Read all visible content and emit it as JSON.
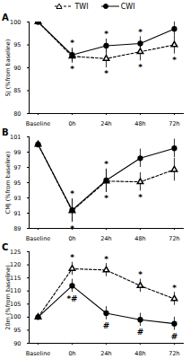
{
  "chart_data": [
    {
      "type": "line",
      "panel": "A",
      "y_label": "SJ (%from baseline)",
      "categories": [
        "Baseline",
        "0h",
        "24h",
        "48h",
        "72h"
      ],
      "ylim": [
        80,
        100
      ],
      "yticks": [
        80,
        85,
        90,
        95,
        100
      ],
      "grid": false,
      "legend": "top",
      "series": [
        {
          "name": "TWI",
          "color": "#000000",
          "marker": "triangle-open",
          "line_style": "dashed",
          "values": [
            100,
            92.5,
            92,
            93.5,
            95
          ],
          "errors": [
            0,
            1.5,
            2,
            2,
            2
          ],
          "annotations": [
            null,
            "*",
            "*",
            "*",
            "*"
          ]
        },
        {
          "name": "CWI",
          "color": "#000000",
          "marker": "circle",
          "line_style": "solid",
          "values": [
            100,
            92.8,
            94.8,
            95.3,
            98.5
          ],
          "errors": [
            0,
            1.5,
            1.5,
            1.5,
            1.5
          ],
          "annotations": [
            null,
            "*",
            "*",
            "*",
            null
          ]
        }
      ]
    },
    {
      "type": "line",
      "panel": "B",
      "y_label": "CMJ (%from baseline)",
      "categories": [
        "Baseline",
        "0h",
        "24h",
        "48h",
        "72h"
      ],
      "ylim": [
        89,
        101
      ],
      "yticks": [
        89,
        91,
        93,
        95,
        97,
        99,
        101
      ],
      "grid": false,
      "series": [
        {
          "name": "TWI",
          "color": "#000000",
          "marker": "triangle-open",
          "line_style": "dashed",
          "values": [
            100,
            91.3,
            95.2,
            95.1,
            96.7
          ],
          "errors": [
            0,
            1.5,
            1.5,
            1.2,
            1.5
          ],
          "annotations": [
            null,
            "*",
            "*",
            "*",
            null
          ]
        },
        {
          "name": "CWI",
          "color": "#000000",
          "marker": "circle",
          "line_style": "solid",
          "values": [
            100,
            91.4,
            95.3,
            98.2,
            99.5
          ],
          "errors": [
            0,
            1.5,
            1.5,
            1.2,
            1.2
          ],
          "annotations": [
            null,
            "*",
            "*",
            null,
            null
          ]
        }
      ]
    },
    {
      "type": "line",
      "panel": "C",
      "y_label": "20m (%from baseline)",
      "categories": [
        "Baseline",
        "0h",
        "24h",
        "48h",
        "72h"
      ],
      "ylim": [
        90,
        125
      ],
      "yticks": [
        90,
        95,
        100,
        105,
        110,
        115,
        120,
        125
      ],
      "grid": false,
      "series": [
        {
          "name": "TWI",
          "color": "#000000",
          "marker": "triangle-open",
          "line_style": "dashed",
          "values": [
            100,
            118.5,
            118,
            112,
            107
          ],
          "errors": [
            0,
            2.5,
            2.5,
            2.5,
            2.5
          ],
          "annotations": [
            null,
            "*",
            "*",
            "*",
            "*"
          ]
        },
        {
          "name": "CWI",
          "color": "#000000",
          "marker": "circle",
          "line_style": "solid",
          "values": [
            100,
            112,
            101.5,
            99,
            97.5
          ],
          "errors": [
            0,
            2.5,
            2.5,
            2.5,
            2.5
          ],
          "annotations": [
            null,
            "*#",
            "#",
            "#",
            "#"
          ]
        }
      ]
    }
  ]
}
